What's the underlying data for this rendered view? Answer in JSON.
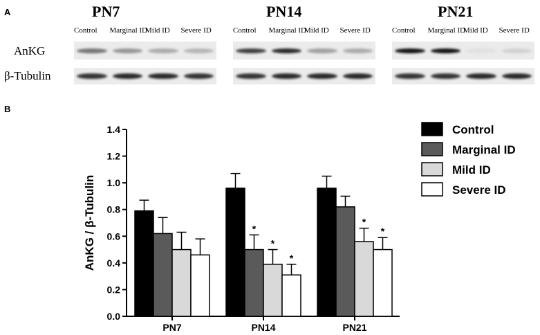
{
  "panel_a": {
    "letter": "A",
    "groups": [
      {
        "title": "PN7",
        "lanes": [
          "Control",
          "Marginal ID",
          "Mild ID",
          "Severe ID"
        ],
        "ankg": [
          0.55,
          0.4,
          0.3,
          0.25
        ],
        "tubulin": [
          0.85,
          0.9,
          0.9,
          0.85
        ]
      },
      {
        "title": "PN14",
        "lanes": [
          "Control",
          "Marginal ID",
          "Mild ID",
          "Severe ID"
        ],
        "ankg": [
          0.8,
          0.9,
          0.35,
          0.3
        ],
        "tubulin": [
          0.85,
          0.9,
          0.9,
          0.9
        ]
      },
      {
        "title": "PN21",
        "lanes": [
          "Control",
          "Marginal ID",
          "Mild ID",
          "Severe ID"
        ],
        "ankg": [
          1.0,
          1.0,
          0.05,
          0.12
        ],
        "tubulin": [
          0.85,
          0.85,
          0.9,
          0.9
        ]
      }
    ],
    "row_labels": {
      "ankg": "AnKG",
      "tubulin": "β-Tubulin"
    }
  },
  "panel_b": {
    "letter": "B"
  },
  "chart_data": {
    "type": "bar",
    "title": "",
    "xlabel": "",
    "ylabel": "AnKG / β-Tubulin",
    "ylim": [
      0,
      1.4
    ],
    "yticks": [
      "0.0",
      "0.2",
      "0.4",
      "0.6",
      "0.8",
      "1.0",
      "1.2",
      "1.4"
    ],
    "categories": [
      "PN7",
      "PN14",
      "PN21"
    ],
    "series": [
      {
        "name": "Control",
        "color": "#000000",
        "values": [
          0.79,
          0.96,
          0.96
        ],
        "errors": [
          0.08,
          0.11,
          0.09
        ],
        "significant": [
          false,
          false,
          false
        ]
      },
      {
        "name": "Marginal ID",
        "color": "#5a5a5a",
        "values": [
          0.62,
          0.5,
          0.82
        ],
        "errors": [
          0.12,
          0.11,
          0.08
        ],
        "significant": [
          false,
          true,
          false
        ]
      },
      {
        "name": "Mild ID",
        "color": "#d9d9d9",
        "values": [
          0.5,
          0.39,
          0.56
        ],
        "errors": [
          0.13,
          0.11,
          0.1
        ],
        "significant": [
          false,
          true,
          true
        ]
      },
      {
        "name": "Severe ID",
        "color": "#ffffff",
        "values": [
          0.46,
          0.31,
          0.5
        ],
        "errors": [
          0.12,
          0.08,
          0.09
        ],
        "significant": [
          false,
          true,
          true
        ]
      }
    ],
    "legend_position": "top-right",
    "significance_marker": "*",
    "grid": false
  }
}
